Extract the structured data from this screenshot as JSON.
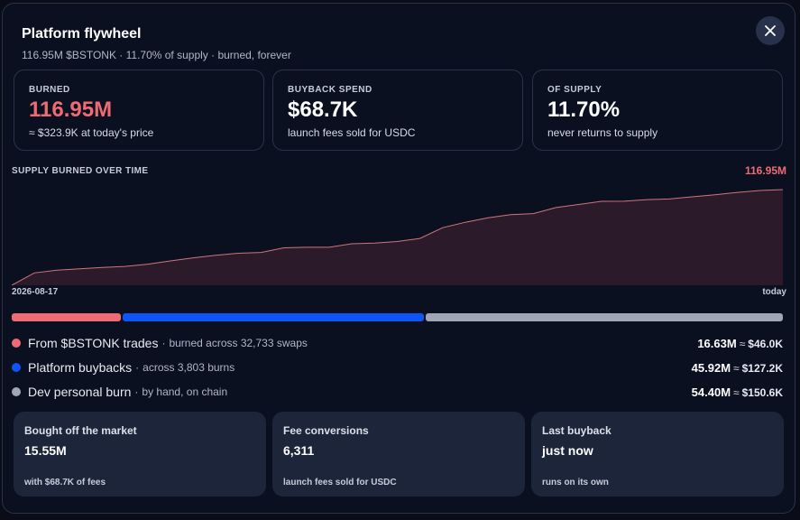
{
  "header": {
    "title": "Platform flywheel",
    "subtitle": "116.95M $BSTONK · 11.70% of supply · burned, forever"
  },
  "stats": [
    {
      "label": "BURNED",
      "value": "116.95M",
      "sub": "≈ $323.9K at today's price"
    },
    {
      "label": "BUYBACK SPEND",
      "value": "$68.7K",
      "sub": "launch fees sold for USDC"
    },
    {
      "label": "OF SUPPLY",
      "value": "11.70%",
      "sub": "never returns to supply"
    }
  ],
  "chart_data": {
    "type": "area",
    "title": "SUPPLY BURNED OVER TIME",
    "latest_label": "116.95M",
    "x_start_label": "2026-08-17",
    "x_end_label": "today",
    "ylim": [
      0,
      116.95
    ],
    "values": [
      0,
      15.1,
      18.4,
      20.2,
      21.7,
      23.1,
      25.8,
      29.8,
      33.5,
      36.7,
      39.2,
      40.2,
      45.8,
      46.5,
      46.5,
      50.8,
      51.6,
      53.5,
      57.3,
      70.4,
      77.0,
      82.5,
      86.4,
      87.6,
      95.0,
      98.8,
      102.6,
      102.7,
      104.7,
      105.5,
      108.1,
      110.6,
      113.5,
      115.9,
      116.95
    ],
    "fill_color": "#2b1a2a",
    "line_color": "#d0747e"
  },
  "sources": [
    {
      "name": "From $BSTONK trades",
      "sep": "·",
      "detail": "burned across 32,733 swaps",
      "amount": "16.63M",
      "approx": "≈",
      "usd": "$46.0K",
      "color": "#ef6b73",
      "share": 14.2
    },
    {
      "name": "Platform buybacks",
      "sep": "·",
      "detail": "across 3,803 burns",
      "amount": "45.92M",
      "approx": "≈",
      "usd": "$127.2K",
      "color": "#0d55f5",
      "share": 39.3
    },
    {
      "name": "Dev personal burn",
      "sep": "·",
      "detail": "by hand, on chain",
      "amount": "54.40M",
      "approx": "≈",
      "usd": "$150.6K",
      "color": "#a1a6b4",
      "share": 46.5
    }
  ],
  "cards": [
    {
      "label": "Bought off the market",
      "value": "15.55M",
      "sub": "with $68.7K of fees"
    },
    {
      "label": "Fee conversions",
      "value": "6,311",
      "sub": "launch fees sold for USDC"
    },
    {
      "label": "Last buyback",
      "value": "just now",
      "sub": "runs on its own"
    }
  ]
}
